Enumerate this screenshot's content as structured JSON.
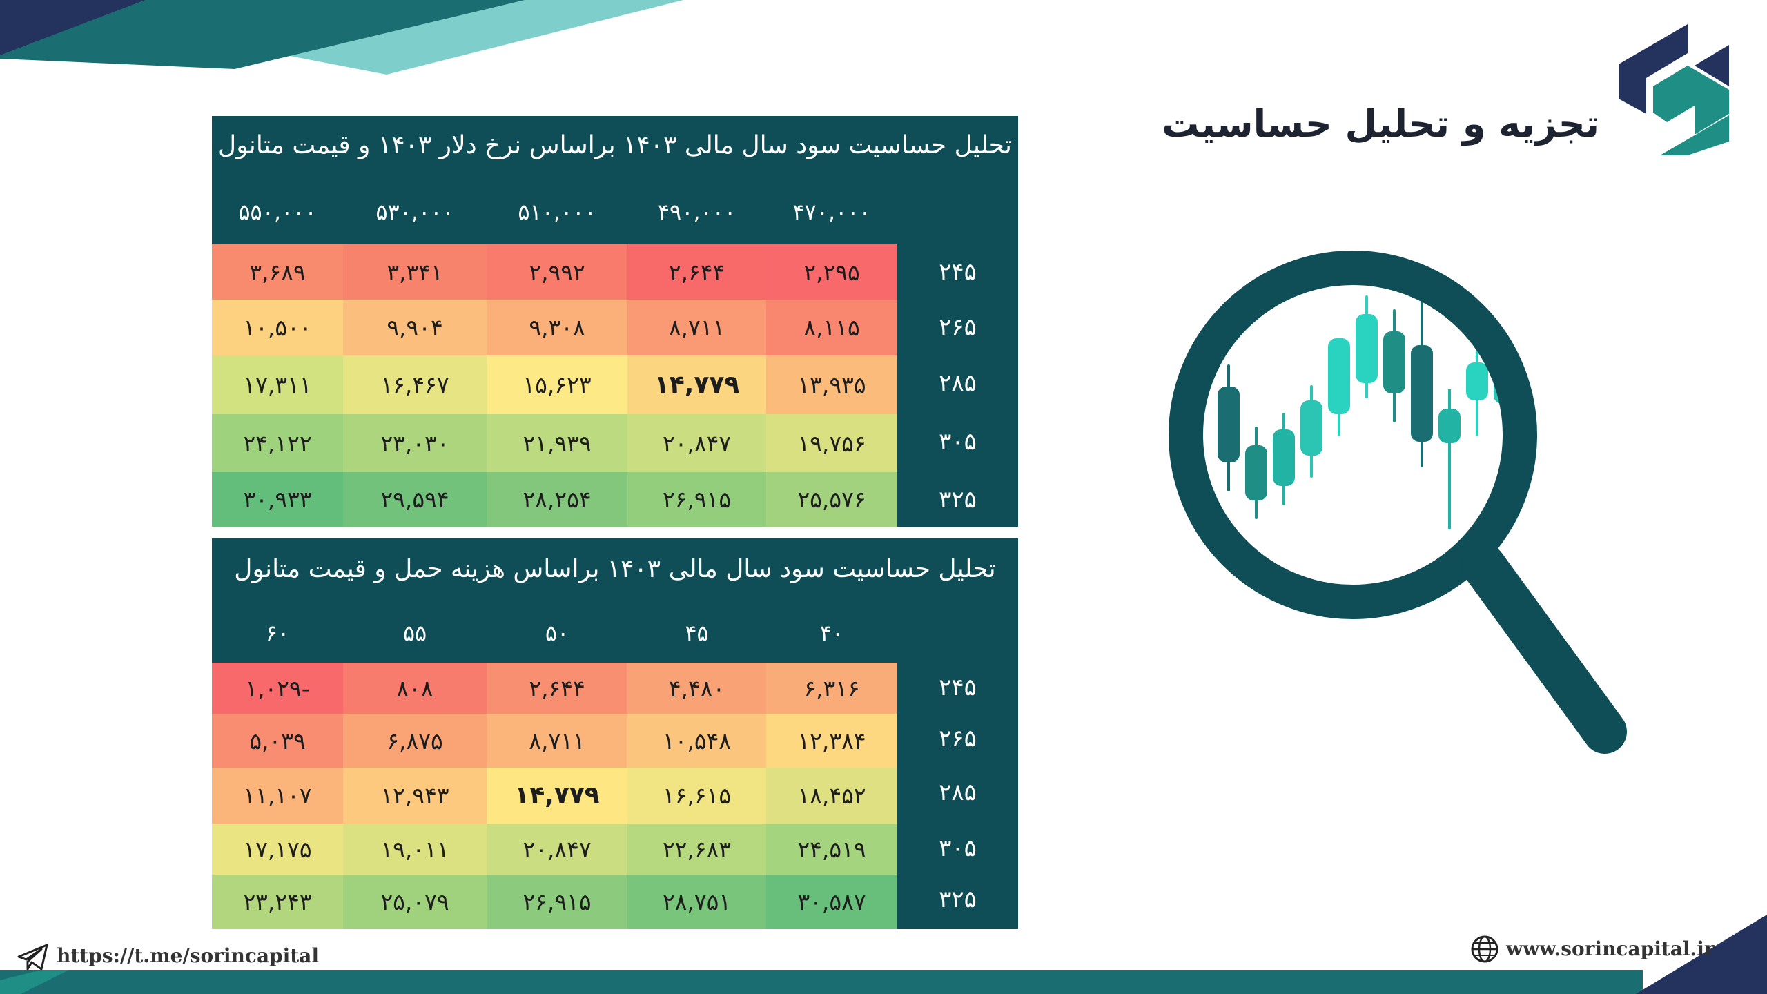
{
  "header": {
    "title": "تجزیه و تحلیل حساسیت"
  },
  "table1": {
    "title": "تحلیل حساسیت سود سال مالی ۱۴۰۳ براساس نرخ دلار ۱۴۰۳ و قیمت متانول",
    "columns": [
      "۵۵۰,۰۰۰",
      "۵۳۰,۰۰۰",
      "۵۱۰,۰۰۰",
      "۴۹۰,۰۰۰",
      "۴۷۰,۰۰۰"
    ],
    "rows": [
      {
        "label": "۲۴۵",
        "cells": [
          "۳,۶۸۹",
          "۳,۳۴۱",
          "۲,۹۹۲",
          "۲,۶۴۴",
          "۲,۲۹۵"
        ]
      },
      {
        "label": "۲۶۵",
        "cells": [
          "۱۰,۵۰۰",
          "۹,۹۰۴",
          "۹,۳۰۸",
          "۸,۷۱۱",
          "۸,۱۱۵"
        ]
      },
      {
        "label": "۲۸۵",
        "cells": [
          "۱۷,۳۱۱",
          "۱۶,۴۶۷",
          "۱۵,۶۲۳",
          "۱۴,۷۷۹",
          "۱۳,۹۳۵"
        ]
      },
      {
        "label": "۳۰۵",
        "cells": [
          "۲۴,۱۲۲",
          "۲۳,۰۳۰",
          "۲۱,۹۳۹",
          "۲۰,۸۴۷",
          "۱۹,۷۵۶"
        ]
      },
      {
        "label": "۳۲۵",
        "cells": [
          "۳۰,۹۳۳",
          "۲۹,۵۹۴",
          "۲۸,۲۵۴",
          "۲۶,۹۱۵",
          "۲۵,۵۷۶"
        ]
      }
    ],
    "colors": [
      [
        "#f88a6e",
        "#f8836c",
        "#f87b6b",
        "#f86a6a",
        "#f8696b"
      ],
      [
        "#fcd17f",
        "#fcbe7c",
        "#fbb079",
        "#fa9a74",
        "#f98770"
      ],
      [
        "#d3e281",
        "#e6e483",
        "#fde985",
        "#fbd580",
        "#fbbb7b"
      ],
      [
        "#9ed27d",
        "#acd57e",
        "#bcda7f",
        "#cadd80",
        "#d9e081"
      ],
      [
        "#63be7b",
        "#72c27c",
        "#83c77c",
        "#93ce7d",
        "#a2d27e"
      ]
    ]
  },
  "table2": {
    "title": "تحلیل حساسیت سود سال مالی ۱۴۰۳ براساس هزینه حمل و قیمت متانول",
    "columns": [
      "۶۰",
      "۵۵",
      "۵۰",
      "۴۵",
      "۴۰"
    ],
    "rows": [
      {
        "label": "۲۴۵",
        "cells": [
          "-۱,۰۲۹",
          "۸۰۸",
          "۲,۶۴۴",
          "۴,۴۸۰",
          "۶,۳۱۶"
        ]
      },
      {
        "label": "۲۶۵",
        "cells": [
          "۵,۰۳۹",
          "۶,۸۷۵",
          "۸,۷۱۱",
          "۱۰,۵۴۸",
          "۱۲,۳۸۴"
        ]
      },
      {
        "label": "۲۸۵",
        "cells": [
          "۱۱,۱۰۷",
          "۱۲,۹۴۳",
          "۱۴,۷۷۹",
          "۱۶,۶۱۵",
          "۱۸,۴۵۲"
        ]
      },
      {
        "label": "۳۰۵",
        "cells": [
          "۱۷,۱۷۵",
          "۱۹,۰۱۱",
          "۲۰,۸۴۷",
          "۲۲,۶۸۳",
          "۲۴,۵۱۹"
        ]
      },
      {
        "label": "۳۲۵",
        "cells": [
          "۲۳,۲۴۳",
          "۲۵,۰۷۹",
          "۲۶,۹۱۵",
          "۲۸,۷۵۱",
          "۳۰,۵۸۷"
        ]
      }
    ],
    "colors": [
      [
        "#f8696b",
        "#f87c6e",
        "#f88f71",
        "#f9a275",
        "#faac78"
      ],
      [
        "#f98d71",
        "#faa476",
        "#fbb47a",
        "#fcc57d",
        "#fdd880"
      ],
      [
        "#fbb57a",
        "#fcc97e",
        "#fee783",
        "#f1e583",
        "#dfe082"
      ],
      [
        "#ebe483",
        "#dbe081",
        "#cadd80",
        "#b6d87e",
        "#a5d47e"
      ],
      [
        "#b1d67e",
        "#a0d17d",
        "#8ccb7d",
        "#7ac57c",
        "#68bf7b"
      ]
    ]
  },
  "footer": {
    "telegram": "https://t.me/sorincapital",
    "website": "www.sorincapital.ir"
  },
  "icons": [
    "logo-icon",
    "telegram-icon",
    "globe-icon",
    "magnifier-chart-icon"
  ],
  "accent_color": "#0f4d57"
}
